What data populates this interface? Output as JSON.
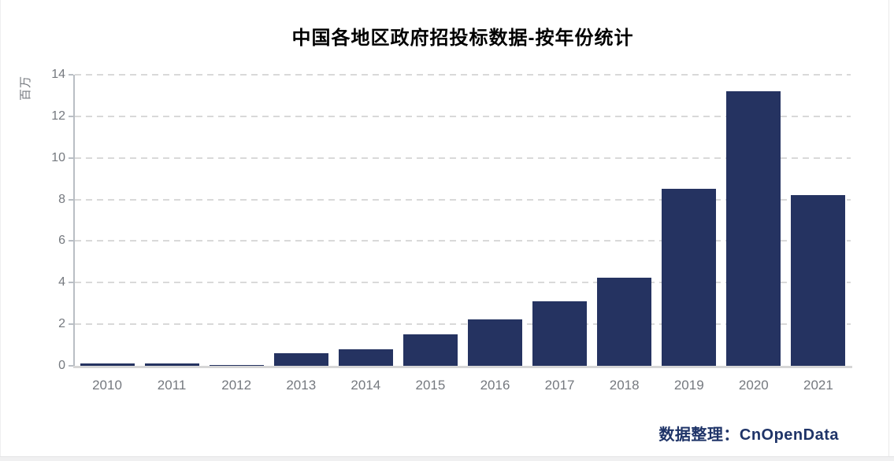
{
  "chart_data": {
    "type": "bar",
    "title": "中国各地区政府招投标数据-按年份统计",
    "unit_label": "百万",
    "categories": [
      "2010",
      "2011",
      "2012",
      "2013",
      "2014",
      "2015",
      "2016",
      "2017",
      "2018",
      "2019",
      "2020",
      "2021"
    ],
    "values": [
      0.1,
      0.1,
      0.05,
      0.6,
      0.8,
      1.5,
      2.25,
      3.1,
      4.25,
      8.5,
      13.2,
      8.2
    ],
    "ylabel": "百万",
    "xlabel": "",
    "ylim": [
      0,
      14
    ],
    "yticks": [
      0,
      2,
      4,
      6,
      8,
      10,
      12,
      14
    ],
    "grid": "horizontal-dashed",
    "legend": "none",
    "bar_color": "#253361",
    "axis_color": "#b9bec4",
    "grid_color": "#d9d9d9",
    "tick_text_color": "#75797f"
  },
  "footer": {
    "credit_prefix": "数据整理：",
    "credit_name": "CnOpenData",
    "color": "#1f3468"
  }
}
